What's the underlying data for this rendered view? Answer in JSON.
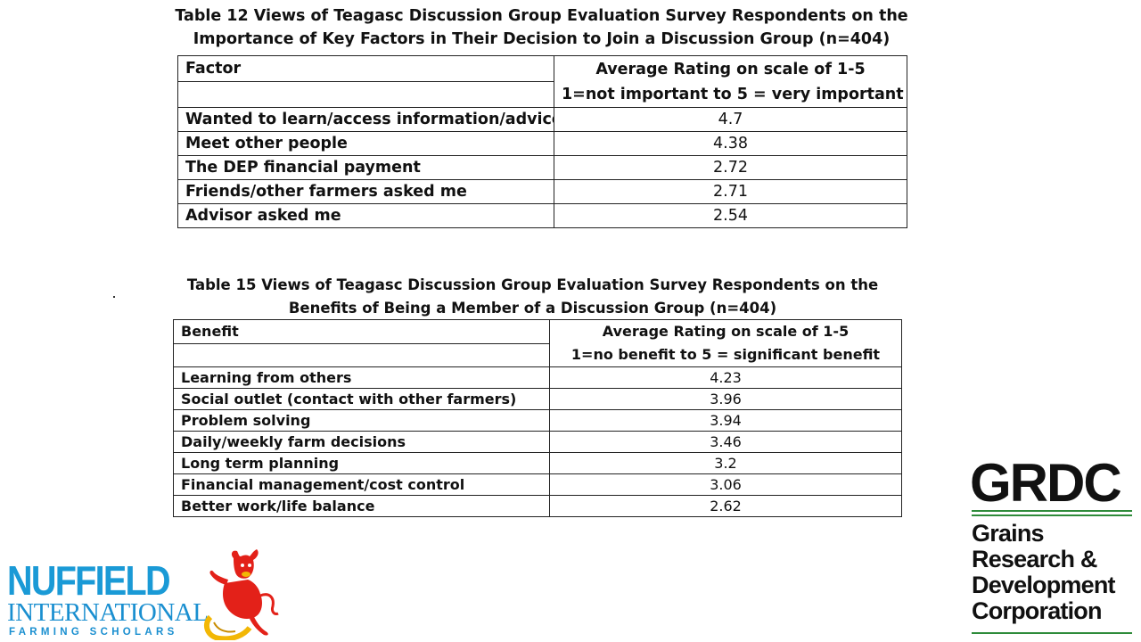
{
  "table12": {
    "caption_line1": "Table 12  Views of Teagasc Discussion Group Evaluation Survey Respondents on the",
    "caption_line2": "Importance of Key Factors in Their Decision to Join a Discussion Group (n=404)",
    "header_factor": "Factor",
    "header_rating_line1": "Average Rating on scale of 1-5",
    "header_rating_line2": "1=not important to 5 = very important",
    "rows": [
      {
        "label": "Wanted to learn/access information/advice",
        "value": "4.7"
      },
      {
        "label": "Meet other people",
        "value": "4.38"
      },
      {
        "label": "The DEP financial payment",
        "value": "2.72"
      },
      {
        "label": "Friends/other farmers asked me",
        "value": "2.71"
      },
      {
        "label": "Advisor asked me",
        "value": "2.54"
      }
    ]
  },
  "table15": {
    "caption_line1": "Table 15  Views of Teagasc Discussion Group Evaluation Survey Respondents on the",
    "caption_line2": "Benefits of Being a Member of a Discussion Group (n=404)",
    "header_benefit": "Benefit",
    "header_rating_line1": "Average Rating on scale of 1-5",
    "header_rating_line2": "1=no benefit to 5 = significant benefit",
    "rows": [
      {
        "label": "Learning from others",
        "value": "4.23"
      },
      {
        "label": "Social outlet (contact with other farmers)",
        "value": "3.96"
      },
      {
        "label": "Problem solving",
        "value": "3.94"
      },
      {
        "label": "Daily/weekly farm decisions",
        "value": "3.46"
      },
      {
        "label": "Long term planning",
        "value": "3.2"
      },
      {
        "label": "Financial management/cost control",
        "value": "3.06"
      },
      {
        "label": "Better work/life balance",
        "value": "2.62"
      }
    ]
  },
  "logos": {
    "nuffield": {
      "line1": "NUFFIELD",
      "line2": "INTERNATIONAL",
      "line3": "FARMING SCHOLARS",
      "icon": "red-bull-icon",
      "colors": {
        "blue": "#1a9ad6",
        "red": "#e32119",
        "gold": "#f2b705"
      }
    },
    "grdc": {
      "acronym": "GRDC",
      "name_line1": "Grains",
      "name_line2": "Research &",
      "name_line3": "Development",
      "name_line4": "Corporation",
      "colors": {
        "text": "#111111",
        "rule": "#2e8b3a"
      }
    }
  }
}
